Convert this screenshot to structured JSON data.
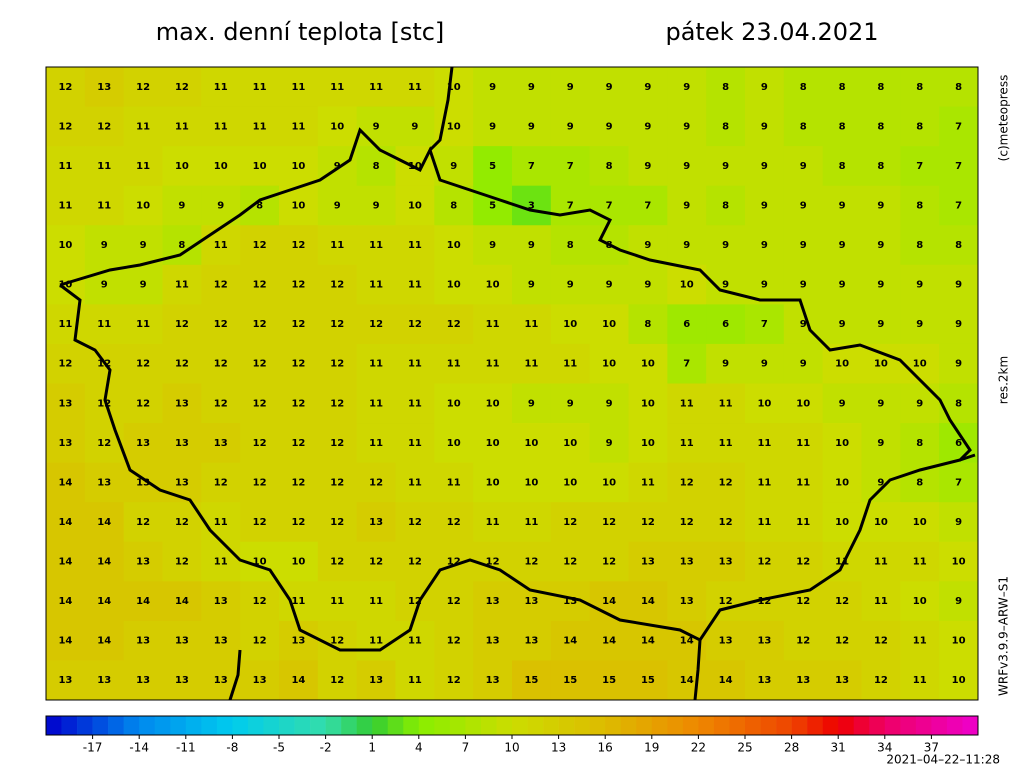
{
  "header": {
    "title": "max. denní teplota [stc]",
    "date": "pátek 23.04.2021"
  },
  "side": {
    "credit": "(c)meteopress",
    "resolution": "res.2km",
    "model": "WRFv3.9.9–ARW–S1",
    "timestamp": "2021–04–22–11:28"
  },
  "map": {
    "rows": [
      [
        12,
        13,
        12,
        12,
        11,
        11,
        11,
        11,
        11,
        11,
        10,
        9,
        9,
        9,
        9,
        9,
        9,
        8,
        9,
        8,
        8,
        8,
        8,
        8
      ],
      [
        12,
        12,
        11,
        11,
        11,
        11,
        11,
        10,
        9,
        9,
        10,
        9,
        9,
        9,
        9,
        9,
        9,
        8,
        9,
        8,
        8,
        8,
        8,
        7
      ],
      [
        11,
        11,
        11,
        10,
        10,
        10,
        10,
        9,
        8,
        10,
        9,
        5,
        7,
        7,
        8,
        9,
        9,
        9,
        9,
        9,
        8,
        8,
        7,
        7
      ],
      [
        11,
        11,
        10,
        9,
        9,
        8,
        10,
        9,
        9,
        10,
        8,
        5,
        3,
        7,
        7,
        7,
        9,
        8,
        9,
        9,
        9,
        9,
        8,
        7
      ],
      [
        10,
        9,
        9,
        8,
        11,
        12,
        12,
        11,
        11,
        11,
        10,
        9,
        9,
        8,
        8,
        9,
        9,
        9,
        9,
        9,
        9,
        9,
        8,
        8
      ],
      [
        10,
        9,
        9,
        11,
        12,
        12,
        12,
        12,
        11,
        11,
        10,
        10,
        9,
        9,
        9,
        9,
        10,
        9,
        9,
        9,
        9,
        9,
        9,
        9
      ],
      [
        11,
        11,
        11,
        12,
        12,
        12,
        12,
        12,
        12,
        12,
        12,
        11,
        11,
        10,
        10,
        8,
        6,
        6,
        7,
        9,
        9,
        9,
        9,
        9
      ],
      [
        12,
        12,
        12,
        12,
        12,
        12,
        12,
        12,
        11,
        11,
        11,
        11,
        11,
        11,
        10,
        10,
        7,
        9,
        9,
        9,
        10,
        10,
        10,
        9
      ],
      [
        13,
        12,
        12,
        13,
        12,
        12,
        12,
        12,
        11,
        11,
        10,
        10,
        9,
        9,
        9,
        10,
        11,
        11,
        10,
        10,
        9,
        9,
        9,
        8
      ],
      [
        13,
        12,
        13,
        13,
        13,
        12,
        12,
        12,
        11,
        11,
        10,
        10,
        10,
        10,
        9,
        10,
        11,
        11,
        11,
        11,
        10,
        9,
        8,
        6
      ],
      [
        14,
        13,
        13,
        13,
        12,
        12,
        12,
        12,
        12,
        11,
        11,
        10,
        10,
        10,
        10,
        11,
        12,
        12,
        11,
        11,
        10,
        9,
        8,
        7
      ],
      [
        14,
        14,
        12,
        12,
        11,
        12,
        12,
        12,
        13,
        12,
        12,
        11,
        11,
        12,
        12,
        12,
        12,
        12,
        11,
        11,
        10,
        10,
        10,
        9
      ],
      [
        14,
        14,
        13,
        12,
        11,
        10,
        10,
        12,
        12,
        12,
        12,
        12,
        12,
        12,
        12,
        13,
        13,
        13,
        12,
        12,
        11,
        11,
        11,
        10
      ],
      [
        14,
        14,
        14,
        14,
        13,
        12,
        11,
        11,
        11,
        12,
        12,
        13,
        13,
        13,
        14,
        14,
        13,
        12,
        12,
        12,
        12,
        11,
        10,
        9
      ],
      [
        14,
        14,
        13,
        13,
        13,
        12,
        13,
        12,
        11,
        11,
        12,
        13,
        13,
        14,
        14,
        14,
        14,
        13,
        13,
        12,
        12,
        12,
        11,
        10
      ],
      [
        13,
        13,
        13,
        13,
        13,
        13,
        14,
        12,
        13,
        11,
        12,
        13,
        15,
        15,
        15,
        15,
        14,
        14,
        13,
        13,
        13,
        12,
        11,
        10
      ]
    ]
  },
  "colorbar": {
    "lim": [
      -20,
      40
    ],
    "ticks": [
      -17,
      -14,
      -11,
      -8,
      -5,
      -2,
      1,
      4,
      7,
      10,
      13,
      16,
      19,
      22,
      25,
      28,
      31,
      34,
      37
    ],
    "stops": [
      {
        "value": -20,
        "color": "#0000cc"
      },
      {
        "value": -14,
        "color": "#0088ee"
      },
      {
        "value": -8,
        "color": "#00ccee"
      },
      {
        "value": -2,
        "color": "#33ddaa"
      },
      {
        "value": 1,
        "color": "#33cc33"
      },
      {
        "value": 4,
        "color": "#88ee00"
      },
      {
        "value": 10,
        "color": "#ccdd00"
      },
      {
        "value": 16,
        "color": "#ddbb00"
      },
      {
        "value": 22,
        "color": "#ee8800"
      },
      {
        "value": 28,
        "color": "#ee4400"
      },
      {
        "value": 31,
        "color": "#ee0000"
      },
      {
        "value": 34,
        "color": "#ee0066"
      },
      {
        "value": 40,
        "color": "#ee00cc"
      }
    ]
  }
}
